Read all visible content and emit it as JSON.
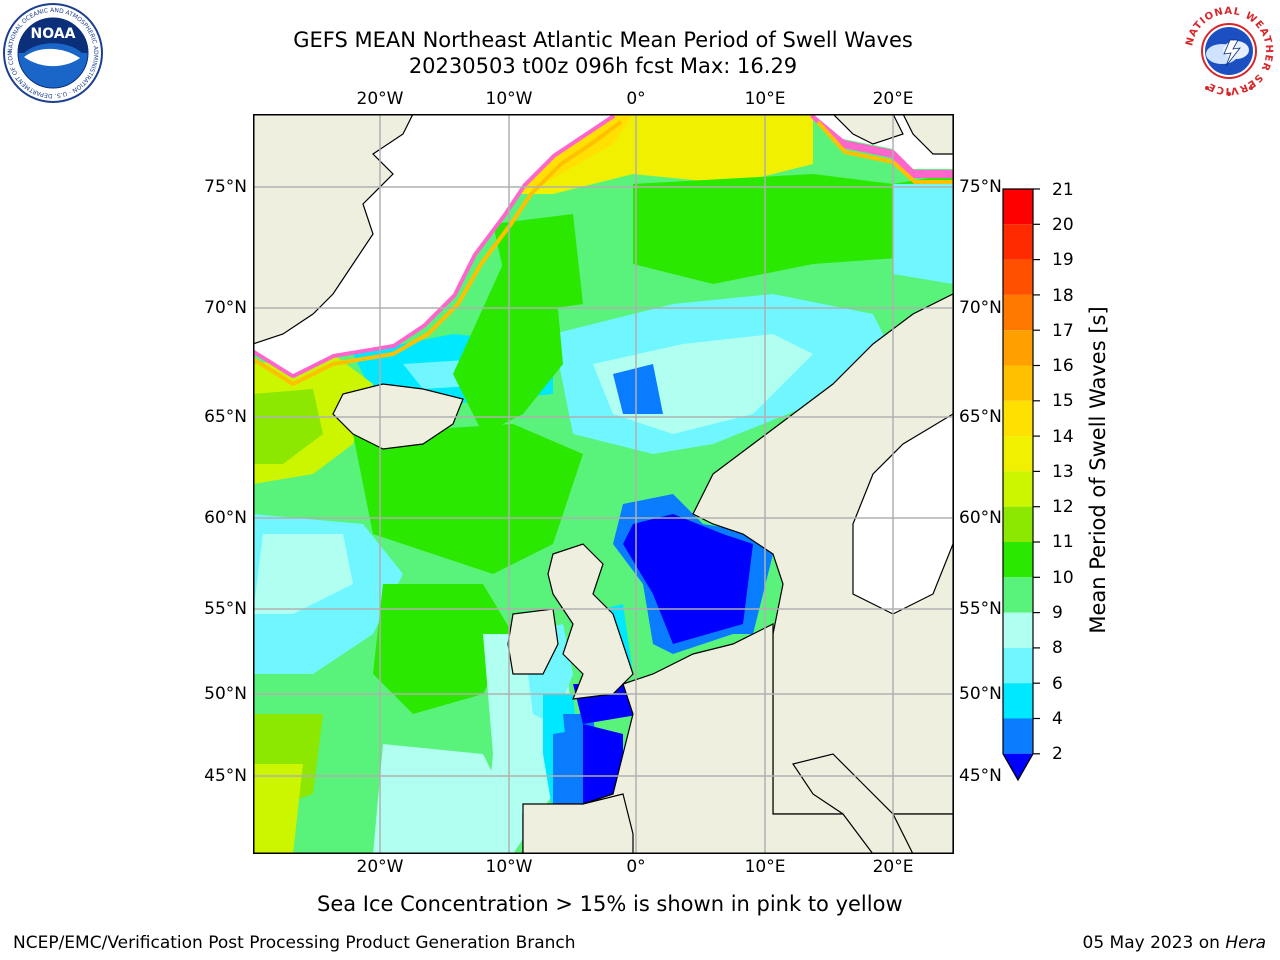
{
  "title": {
    "line1": "GEFS MEAN Northeast Atlantic Mean Period of Swell Waves",
    "line2": "20230503 t00z 096h fcst   Max: 16.29"
  },
  "map": {
    "lat_ticks": [
      "75°N",
      "70°N",
      "65°N",
      "60°N",
      "55°N",
      "50°N",
      "45°N"
    ],
    "lon_ticks_top": [
      "20°W",
      "10°W",
      "0°",
      "10°E",
      "20°E"
    ],
    "lon_ticks_bottom": [
      "20°W",
      "10°W",
      "0°",
      "10°E",
      "20°E"
    ],
    "land_color": "#efefe0",
    "ocean_palette": {
      "2-4": "#0000ff",
      "4-6": "#0a7cff",
      "6-8": "#00e8ff",
      "8-9": "#6ff6ff",
      "9-10": "#b0fff0",
      "10-11": "#59f27a",
      "11-12": "#2ae800",
      "12-13": "#8ce800",
      "13-14": "#ccf500",
      "14-15": "#f0f000",
      "15-16": "#ffe000",
      "16-17": "#ffc000",
      "17-18": "#ffa000",
      "18-19": "#ff7800",
      "19-20": "#ff5000",
      "20-21": "#ff0000"
    }
  },
  "colorbar": {
    "label": "Mean Period of Swell Waves [s]",
    "ticks": [
      "21",
      "20",
      "19",
      "18",
      "17",
      "16",
      "15",
      "14",
      "13",
      "12",
      "11",
      "10",
      "9",
      "8",
      "6",
      "4",
      "2"
    ]
  },
  "note": "Sea Ice Concentration > 15% is shown in pink to yellow",
  "footer": {
    "left": "NCEP/EMC/Verification Post Processing Product Generation Branch",
    "right_date": "05 May 2023 on ",
    "right_system": "Hera"
  },
  "logos": {
    "left": "NOAA",
    "left_ring": "NATIONAL OCEANIC AND ATMOSPHERIC ADMINISTRATION · U.S. DEPARTMENT OF COMMERCE",
    "right_ring": "NATIONAL WEATHER SERVICE"
  }
}
